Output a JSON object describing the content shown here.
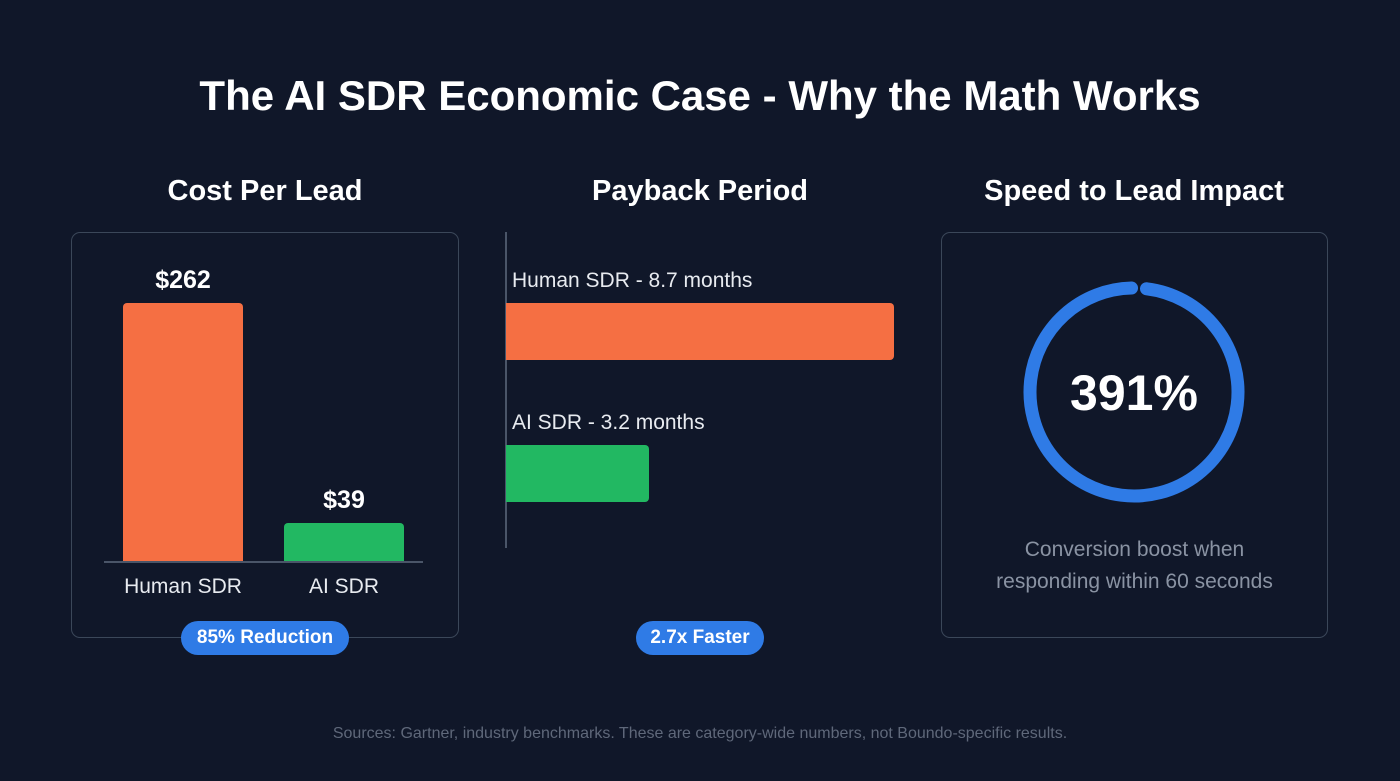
{
  "title": "The AI SDR Economic Case - Why the Math Works",
  "colors": {
    "human": "#f56f43",
    "ai": "#22b862",
    "accent": "#2f7be6",
    "background": "#101729"
  },
  "chart_data": [
    {
      "type": "bar",
      "title": "Cost Per Lead",
      "categories": [
        "Human SDR",
        "AI SDR"
      ],
      "values": [
        262,
        39
      ],
      "value_labels": [
        "$262",
        "$39"
      ],
      "badge": "85% Reduction"
    },
    {
      "type": "bar",
      "orientation": "horizontal",
      "title": "Payback Period",
      "labels": [
        "Human SDR - 8.7 months",
        "AI SDR - 3.2 months"
      ],
      "values": [
        8.7,
        3.2
      ],
      "unit": "months",
      "badge": "2.7x Faster"
    },
    {
      "type": "pie",
      "style": "ring",
      "title": "Speed to Lead Impact",
      "value_label": "391%",
      "caption_lines": [
        "Conversion boost when",
        "responding within 60 seconds"
      ]
    }
  ],
  "footer": "Sources: Gartner, industry benchmarks. These are category-wide numbers, not Boundo-specific results."
}
